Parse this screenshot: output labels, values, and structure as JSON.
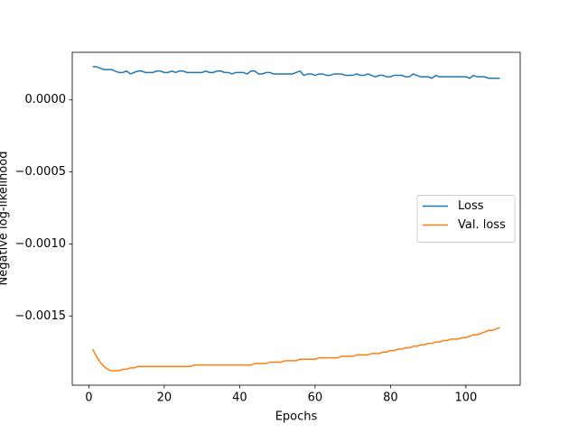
{
  "chart_data": {
    "type": "line",
    "xlabel": "Epochs",
    "ylabel": "Negative log-likelihood",
    "x": [
      1,
      2,
      3,
      4,
      5,
      6,
      7,
      8,
      9,
      10,
      11,
      12,
      13,
      14,
      15,
      16,
      17,
      18,
      19,
      20,
      21,
      22,
      23,
      24,
      25,
      26,
      27,
      28,
      29,
      30,
      31,
      32,
      33,
      34,
      35,
      36,
      37,
      38,
      39,
      40,
      41,
      42,
      43,
      44,
      45,
      46,
      47,
      48,
      49,
      50,
      51,
      52,
      53,
      54,
      55,
      56,
      57,
      58,
      59,
      60,
      61,
      62,
      63,
      64,
      65,
      66,
      67,
      68,
      69,
      70,
      71,
      72,
      73,
      74,
      75,
      76,
      77,
      78,
      79,
      80,
      81,
      82,
      83,
      84,
      85,
      86,
      87,
      88,
      89,
      90,
      91,
      92,
      93,
      94,
      95,
      96,
      97,
      98,
      99,
      100,
      101,
      102,
      103,
      104,
      105,
      106,
      107,
      108,
      109
    ],
    "series": [
      {
        "name": "Loss",
        "color": "#1f77b4",
        "values": [
          0.00023,
          0.00023,
          0.00022,
          0.00021,
          0.00021,
          0.00021,
          0.0002,
          0.00019,
          0.00019,
          0.0002,
          0.00018,
          0.00019,
          0.0002,
          0.0002,
          0.00019,
          0.00019,
          0.00019,
          0.0002,
          0.0002,
          0.00019,
          0.00019,
          0.0002,
          0.00019,
          0.0002,
          0.0002,
          0.00019,
          0.00019,
          0.00019,
          0.00019,
          0.00019,
          0.0002,
          0.00019,
          0.00019,
          0.0002,
          0.0002,
          0.00019,
          0.00019,
          0.00018,
          0.00019,
          0.00019,
          0.00019,
          0.00018,
          0.0002,
          0.0002,
          0.00018,
          0.00018,
          0.00019,
          0.00019,
          0.00018,
          0.00018,
          0.00018,
          0.00018,
          0.00018,
          0.00018,
          0.00019,
          0.0002,
          0.00017,
          0.00018,
          0.00018,
          0.00017,
          0.00018,
          0.00018,
          0.00017,
          0.00017,
          0.00018,
          0.00018,
          0.00018,
          0.00017,
          0.00017,
          0.00017,
          0.00018,
          0.00017,
          0.00017,
          0.00018,
          0.00017,
          0.00016,
          0.00017,
          0.00017,
          0.00016,
          0.00016,
          0.00017,
          0.00017,
          0.00017,
          0.00016,
          0.00016,
          0.00018,
          0.00017,
          0.00016,
          0.00016,
          0.00016,
          0.00015,
          0.00017,
          0.00016,
          0.00016,
          0.00016,
          0.00016,
          0.00016,
          0.00016,
          0.00016,
          0.00016,
          0.00015,
          0.00017,
          0.00016,
          0.00016,
          0.00016,
          0.00015,
          0.00015,
          0.00015,
          0.00015
        ]
      },
      {
        "name": "Val. loss",
        "color": "#ff7f0e",
        "values": [
          -0.00173,
          -0.00178,
          -0.00182,
          -0.00185,
          -0.00187,
          -0.00188,
          -0.00188,
          -0.00188,
          -0.00187,
          -0.00187,
          -0.00186,
          -0.00186,
          -0.00185,
          -0.00185,
          -0.00185,
          -0.00185,
          -0.00185,
          -0.00185,
          -0.00185,
          -0.00185,
          -0.00185,
          -0.00185,
          -0.00185,
          -0.00185,
          -0.00185,
          -0.00185,
          -0.00185,
          -0.00184,
          -0.00184,
          -0.00184,
          -0.00184,
          -0.00184,
          -0.00184,
          -0.00184,
          -0.00184,
          -0.00184,
          -0.00184,
          -0.00184,
          -0.00184,
          -0.00184,
          -0.00184,
          -0.00184,
          -0.00184,
          -0.00183,
          -0.00183,
          -0.00183,
          -0.00183,
          -0.00182,
          -0.00182,
          -0.00182,
          -0.00182,
          -0.00181,
          -0.00181,
          -0.00181,
          -0.00181,
          -0.0018,
          -0.0018,
          -0.0018,
          -0.0018,
          -0.0018,
          -0.00179,
          -0.00179,
          -0.00179,
          -0.00179,
          -0.00179,
          -0.00179,
          -0.00178,
          -0.00178,
          -0.00178,
          -0.00178,
          -0.00177,
          -0.00177,
          -0.00177,
          -0.00177,
          -0.00176,
          -0.00176,
          -0.00176,
          -0.00175,
          -0.00175,
          -0.00174,
          -0.00174,
          -0.00173,
          -0.00173,
          -0.00172,
          -0.00172,
          -0.00171,
          -0.00171,
          -0.0017,
          -0.0017,
          -0.00169,
          -0.00169,
          -0.00168,
          -0.00168,
          -0.00167,
          -0.00167,
          -0.00166,
          -0.00166,
          -0.00166,
          -0.00165,
          -0.00165,
          -0.00164,
          -0.00163,
          -0.00163,
          -0.00162,
          -0.00161,
          -0.0016,
          -0.0016,
          -0.00159,
          -0.00158
        ]
      }
    ],
    "xlim": [
      -4.4,
      114.4
    ],
    "xticks": [
      0,
      20,
      40,
      60,
      80,
      100
    ],
    "ylim": [
      -0.00198,
      0.00033
    ],
    "yticks": [
      {
        "value": 0,
        "label": "0.0000"
      },
      {
        "value": -0.0005,
        "label": "−0.0005"
      },
      {
        "value": -0.001,
        "label": "−0.0010"
      },
      {
        "value": -0.0015,
        "label": "−0.0015"
      }
    ],
    "legend": "center right",
    "grid": false
  }
}
